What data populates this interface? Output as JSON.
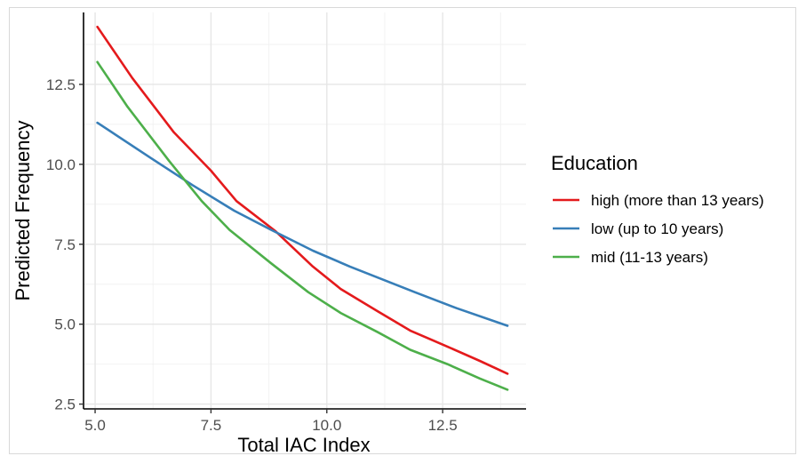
{
  "chart_data": {
    "type": "line",
    "xlabel": "Total IAC Index",
    "ylabel": "Predicted Frequency",
    "xlim": [
      4.75,
      14.3
    ],
    "ylim": [
      2.35,
      14.75
    ],
    "x_ticks": [
      "5.0",
      "7.5",
      "10.0",
      "12.5"
    ],
    "x_tick_values": [
      5.0,
      7.5,
      10.0,
      12.5
    ],
    "y_ticks": [
      "2.5",
      "5.0",
      "7.5",
      "10.0",
      "12.5"
    ],
    "y_tick_values": [
      2.5,
      5.0,
      7.5,
      10.0,
      12.5
    ],
    "grid": true,
    "legend": {
      "title": "Education",
      "position": "right"
    },
    "series": [
      {
        "name": "high (more than 13 years)",
        "color": "#e41a1c",
        "x": [
          5.05,
          5.8,
          6.7,
          7.5,
          8.05,
          8.9,
          9.7,
          10.3,
          11.1,
          11.8,
          12.6,
          13.3,
          13.9
        ],
        "y": [
          14.3,
          12.7,
          11.0,
          9.8,
          8.85,
          7.9,
          6.8,
          6.1,
          5.4,
          4.8,
          4.3,
          3.85,
          3.45
        ]
      },
      {
        "name": "low (up to 10 years)",
        "color": "#377eb8",
        "x": [
          5.05,
          6.2,
          7.1,
          8.0,
          8.8,
          9.7,
          10.5,
          11.2,
          11.9,
          12.8,
          13.9
        ],
        "y": [
          11.3,
          10.2,
          9.35,
          8.55,
          7.95,
          7.3,
          6.8,
          6.4,
          6.0,
          5.5,
          4.95
        ]
      },
      {
        "name": "mid (11-13 years)",
        "color": "#4daf4a",
        "x": [
          5.05,
          5.7,
          6.6,
          7.3,
          7.9,
          8.8,
          9.6,
          10.3,
          11.1,
          11.8,
          12.6,
          13.3,
          13.9
        ],
        "y": [
          13.2,
          11.8,
          10.1,
          8.85,
          7.95,
          6.9,
          6.0,
          5.35,
          4.75,
          4.2,
          3.75,
          3.3,
          2.95
        ]
      }
    ]
  }
}
